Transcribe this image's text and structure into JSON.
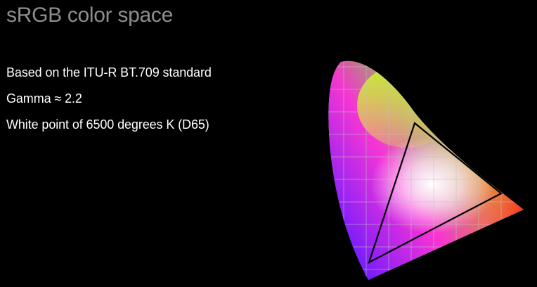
{
  "slide": {
    "title": "sRGB color space",
    "bullets": [
      "Based on the ITU-R BT.709 standard",
      "Gamma ≈ 2.2",
      "White point of 6500 degrees K (D65)"
    ]
  },
  "diagram": {
    "kind": "cie-chromaticity-gamut",
    "gamut": "triangle",
    "primaries": [
      "red",
      "green",
      "blue"
    ]
  },
  "colors": {
    "background": "#000000",
    "title_text": "#8e8e8e",
    "body_text": "#ffffff",
    "triangle_stroke": "#000000",
    "grid_line": "#bfbfbf"
  }
}
